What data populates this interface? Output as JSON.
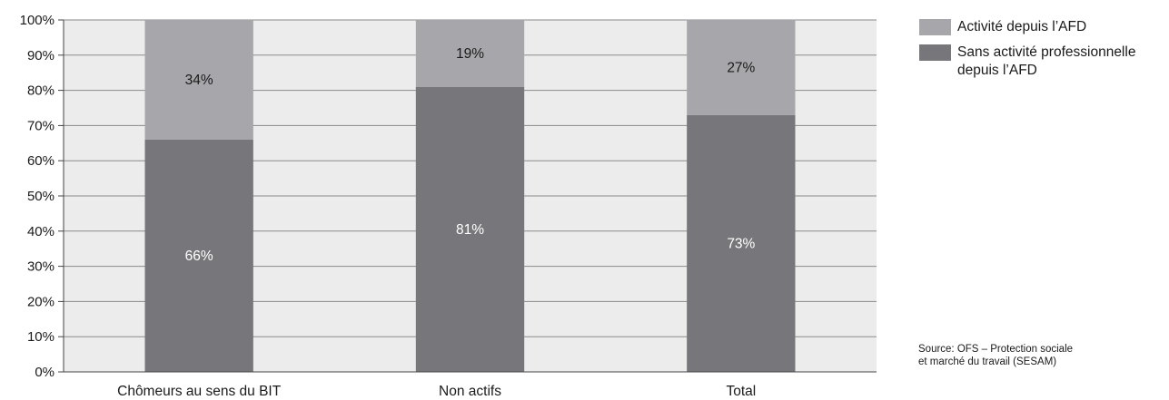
{
  "chart_data": {
    "type": "bar",
    "stacked": true,
    "normalized_percent": true,
    "categories": [
      "Chômeurs au sens du BIT",
      "Non actifs",
      "Total"
    ],
    "series": [
      {
        "name": "Sans activité professionnelle depuis l’AFD",
        "values": [
          66,
          81,
          73
        ],
        "labels": [
          "66%",
          "81%",
          "73%"
        ],
        "color": "#77777b"
      },
      {
        "name": "Activité depuis l’AFD",
        "values": [
          34,
          19,
          27
        ],
        "labels": [
          "34%",
          "19%",
          "27%"
        ],
        "color": "#a7a7ab"
      }
    ],
    "ylim": [
      0,
      100
    ],
    "yticks": [
      "0%",
      "10%",
      "20%",
      "30%",
      "40%",
      "50%",
      "60%",
      "70%",
      "80%",
      "90%",
      "100%"
    ],
    "grid": true,
    "plot_background": "#ececec",
    "legend_position": "right"
  },
  "legend": {
    "items": [
      {
        "label": "Activité depuis l’AFD",
        "color": "#a7a7ab"
      },
      {
        "label": "Sans activité professionnelle depuis l’AFD",
        "color": "#77777b"
      }
    ]
  },
  "source": {
    "line1": "Source: OFS – Protection sociale",
    "line2": "et marché du travail (SESAM)"
  }
}
